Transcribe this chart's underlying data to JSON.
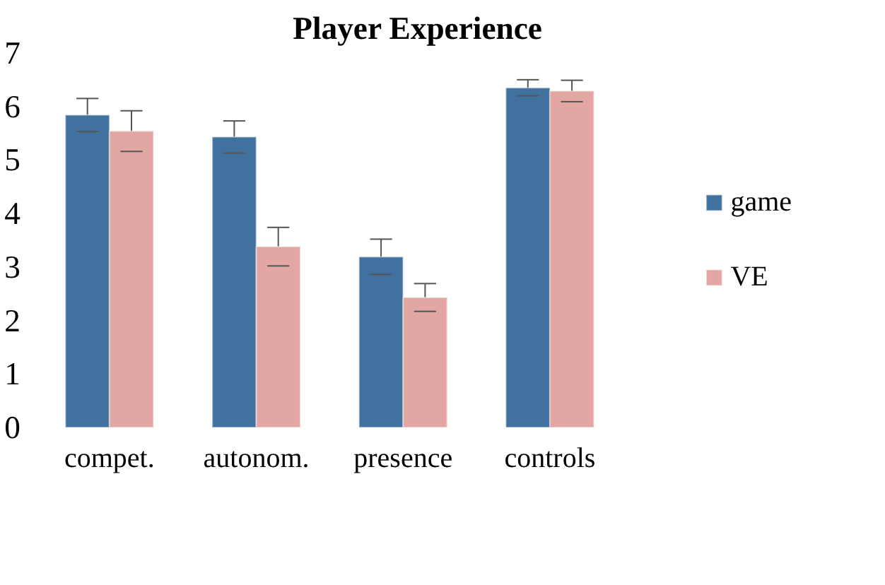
{
  "chart_data": {
    "type": "bar",
    "title": "Player Experience",
    "categories": [
      "compet.",
      "autonom.",
      "presence",
      "controls"
    ],
    "series": [
      {
        "name": "game",
        "color": "#41729f",
        "values": [
          5.84,
          5.43,
          3.19,
          6.35
        ],
        "errors": [
          0.31,
          0.3,
          0.33,
          0.15
        ]
      },
      {
        "name": "VE",
        "color": "#e2a7a3",
        "values": [
          5.54,
          3.38,
          2.43,
          6.29
        ],
        "errors": [
          0.38,
          0.36,
          0.26,
          0.2
        ]
      }
    ],
    "ylim": [
      0,
      7
    ],
    "yticks": [
      0,
      1,
      2,
      3,
      4,
      5,
      6,
      7
    ],
    "grid": false,
    "legend": "right"
  }
}
